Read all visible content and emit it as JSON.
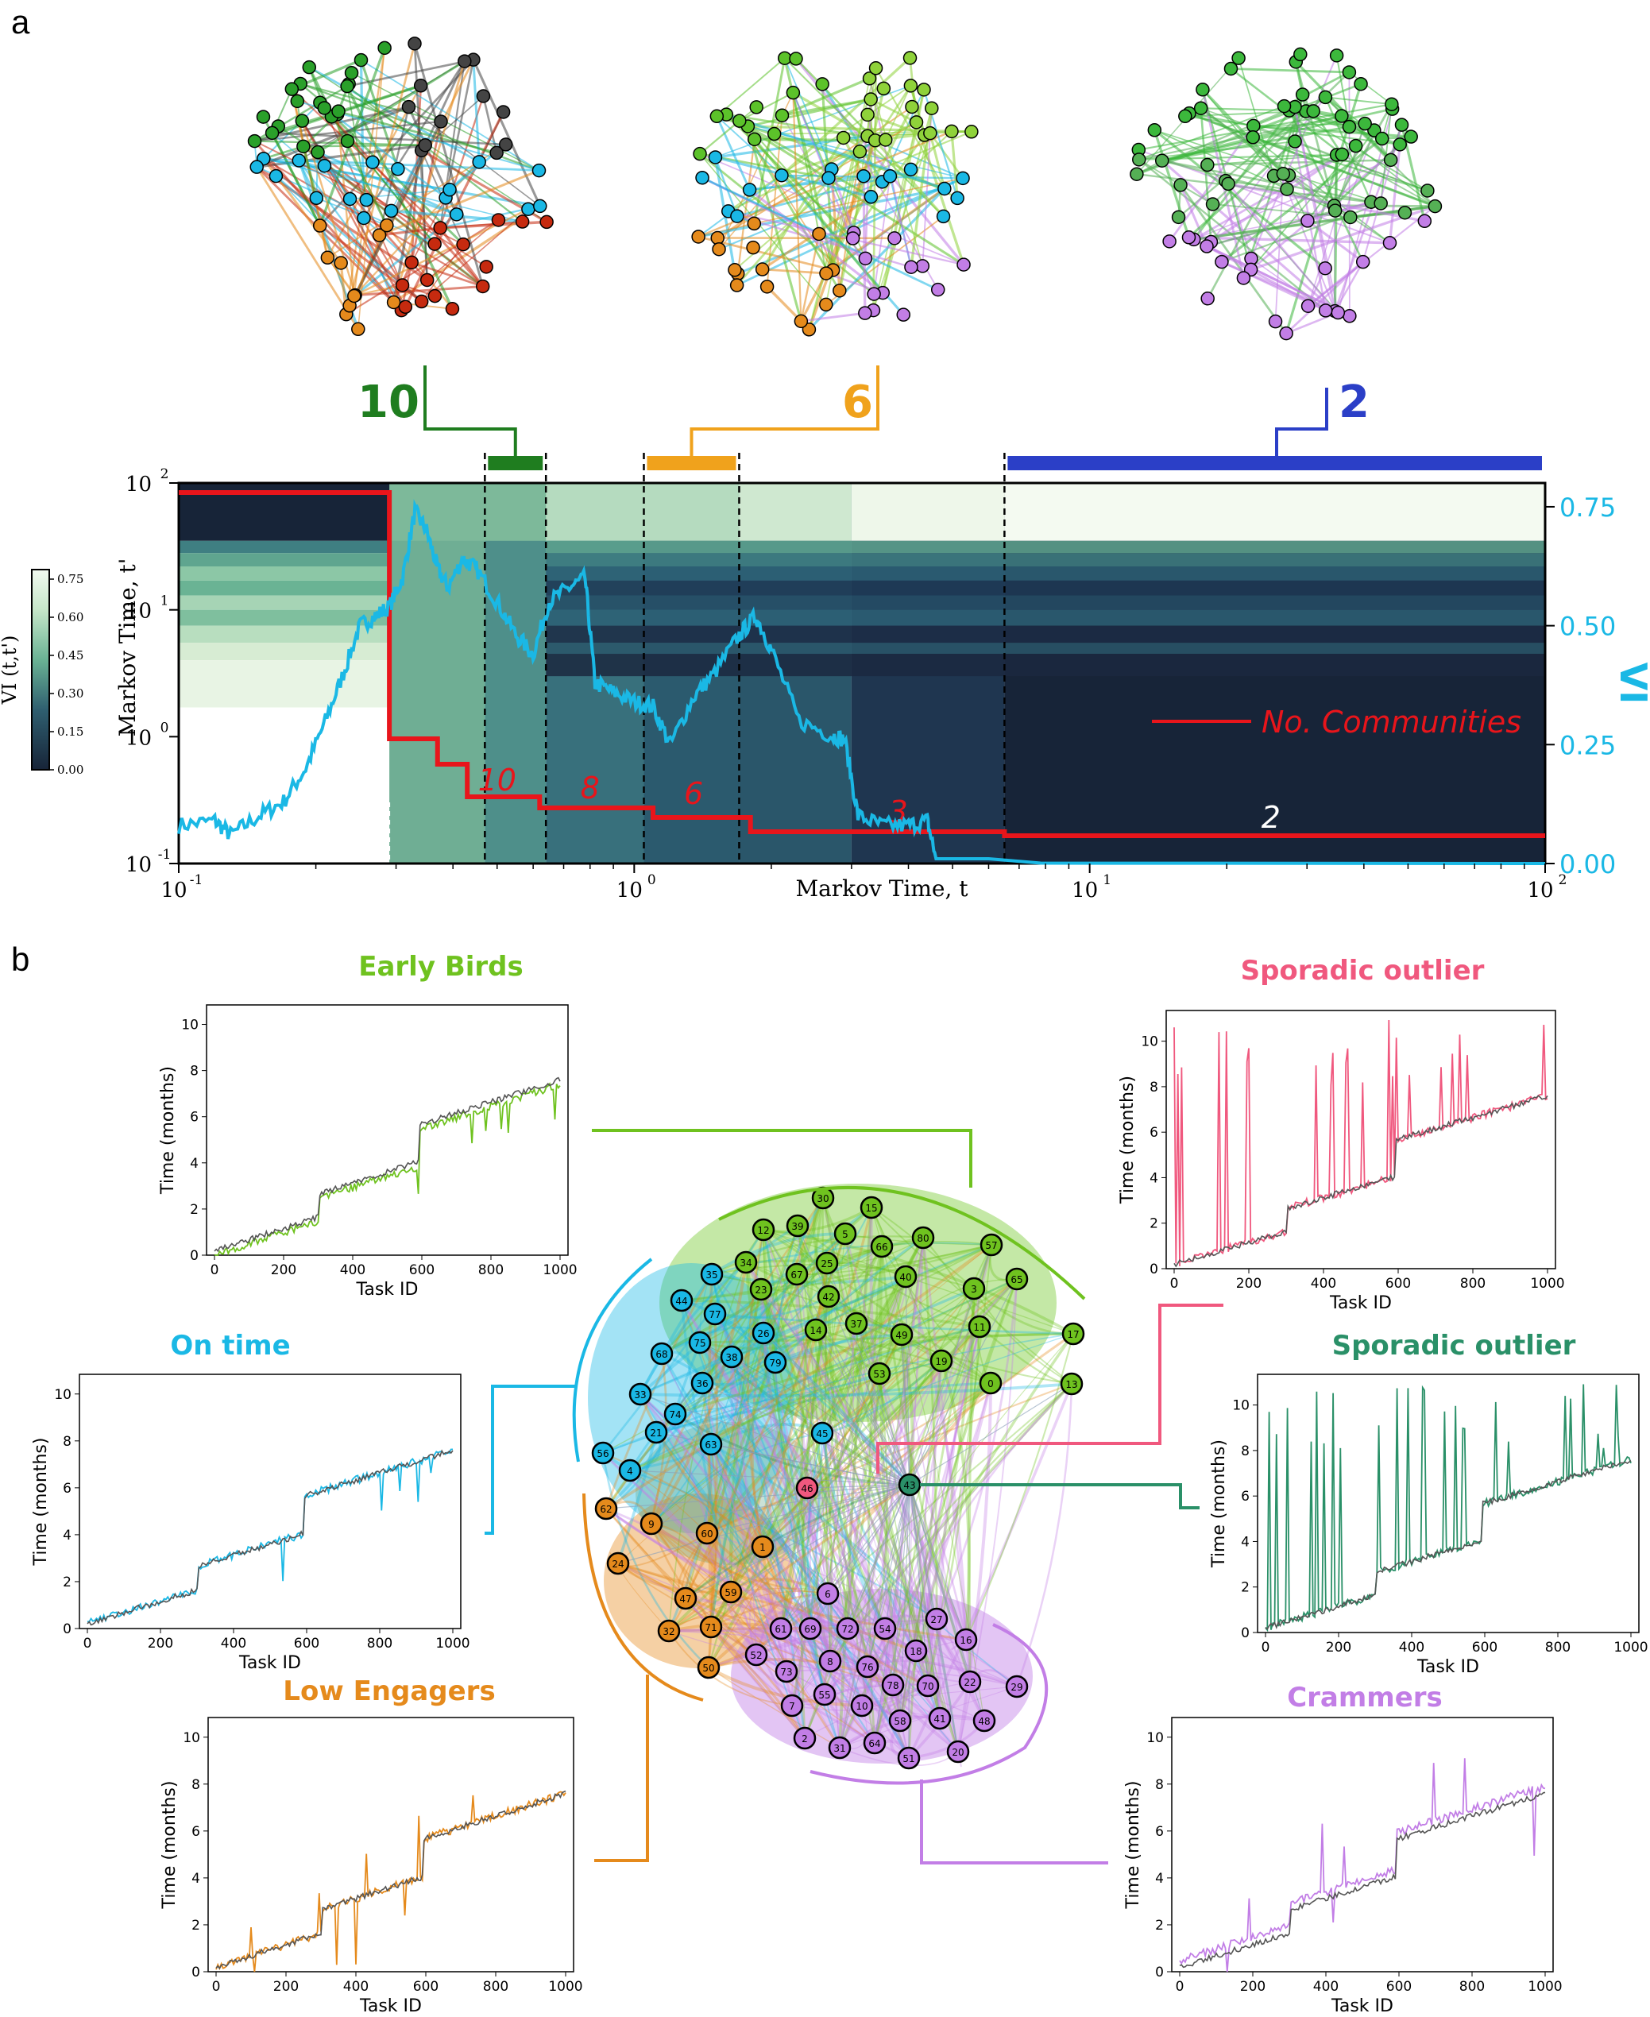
{
  "panel_labels": [
    "a",
    "b"
  ],
  "colors": {
    "green10": "#1f7d1f",
    "orange6": "#f0a21c",
    "blue2": "#2b3fc7",
    "red": "#e8151b",
    "cyan": "#1ab8e5",
    "early": "#6fc21f",
    "ontime": "#1ab8e5",
    "sporadic_pink": "#f0587e",
    "sporadic_green": "#2a9068",
    "low": "#e58a1c",
    "crammers": "#c27ee6"
  },
  "chart_data": [
    {
      "type": "heatmap",
      "xlabel": "Markov Time, t",
      "ylabel": "Markov Time, t'",
      "ylabel_right": "VI",
      "colorbar_label": "VI (t,t')",
      "x_scale": "log",
      "y_scale": "log",
      "xlim": [
        0.1,
        100
      ],
      "ylim": [
        0.1,
        100
      ],
      "ylim_right": [
        0.0,
        0.8
      ],
      "x_ticks": [
        "10",
        "10",
        "10",
        "10"
      ],
      "x_tick_exp": [
        "-1",
        "0",
        "1",
        "2"
      ],
      "y_ticks": [
        "10",
        "10",
        "10",
        "10"
      ],
      "y_tick_exp": [
        "-1",
        "0",
        "1",
        "2"
      ],
      "right_ticks": [
        "0.00",
        "0.25",
        "0.50",
        "0.75"
      ],
      "colorbar_ticks": [
        "0.75",
        "0.60",
        "0.45",
        "0.30",
        "0.15",
        "0.00"
      ],
      "legend": "No. Communities",
      "community_labels": [
        "10",
        "8",
        "6",
        "3",
        "2"
      ],
      "community_steps": [
        {
          "t": 0.1,
          "n": 100
        },
        {
          "t": 0.29,
          "n": 80
        },
        {
          "t": 0.3,
          "n": 15
        },
        {
          "t": 0.37,
          "n": 13
        },
        {
          "t": 0.43,
          "n": 10
        },
        {
          "t": 0.62,
          "n": 9
        },
        {
          "t": 1.1,
          "n": 8
        },
        {
          "t": 1.8,
          "n": 6
        },
        {
          "t": 6.5,
          "n": 3
        },
        {
          "t": 100,
          "n": 2
        }
      ],
      "vi_series": [
        {
          "t": 0.1,
          "vi": 0.08
        },
        {
          "t": 0.12,
          "vi": 0.09
        },
        {
          "t": 0.13,
          "vi": 0.06
        },
        {
          "t": 0.15,
          "vi": 0.1
        },
        {
          "t": 0.17,
          "vi": 0.13
        },
        {
          "t": 0.19,
          "vi": 0.2
        },
        {
          "t": 0.21,
          "vi": 0.3
        },
        {
          "t": 0.23,
          "vi": 0.4
        },
        {
          "t": 0.25,
          "vi": 0.5
        },
        {
          "t": 0.27,
          "vi": 0.52
        },
        {
          "t": 0.29,
          "vi": 0.54
        },
        {
          "t": 0.31,
          "vi": 0.6
        },
        {
          "t": 0.33,
          "vi": 0.74
        },
        {
          "t": 0.35,
          "vi": 0.7
        },
        {
          "t": 0.37,
          "vi": 0.62
        },
        {
          "t": 0.39,
          "vi": 0.58
        },
        {
          "t": 0.42,
          "vi": 0.64
        },
        {
          "t": 0.45,
          "vi": 0.62
        },
        {
          "t": 0.5,
          "vi": 0.55
        },
        {
          "t": 0.55,
          "vi": 0.48
        },
        {
          "t": 0.6,
          "vi": 0.44
        },
        {
          "t": 0.65,
          "vi": 0.55
        },
        {
          "t": 0.72,
          "vi": 0.58
        },
        {
          "t": 0.78,
          "vi": 0.6
        },
        {
          "t": 0.82,
          "vi": 0.38
        },
        {
          "t": 0.9,
          "vi": 0.36
        },
        {
          "t": 1.0,
          "vi": 0.34
        },
        {
          "t": 1.1,
          "vi": 0.33
        },
        {
          "t": 1.2,
          "vi": 0.25
        },
        {
          "t": 1.35,
          "vi": 0.35
        },
        {
          "t": 1.5,
          "vi": 0.4
        },
        {
          "t": 1.7,
          "vi": 0.48
        },
        {
          "t": 1.85,
          "vi": 0.52
        },
        {
          "t": 2.0,
          "vi": 0.45
        },
        {
          "t": 2.3,
          "vi": 0.3
        },
        {
          "t": 2.7,
          "vi": 0.27
        },
        {
          "t": 2.9,
          "vi": 0.26
        },
        {
          "t": 3.1,
          "vi": 0.1
        },
        {
          "t": 3.5,
          "vi": 0.08
        },
        {
          "t": 4.0,
          "vi": 0.08
        },
        {
          "t": 4.4,
          "vi": 0.09
        },
        {
          "t": 4.6,
          "vi": 0.01
        },
        {
          "t": 6.0,
          "vi": 0.01
        },
        {
          "t": 8.0,
          "vi": 0.0
        }
      ],
      "selected_ranges": [
        {
          "label": "10",
          "t_start": 0.47,
          "t_end": 0.64
        },
        {
          "label": "6",
          "t_start": 1.05,
          "t_end": 1.7
        },
        {
          "label": "2",
          "t_start": 6.5,
          "t_end": 100
        }
      ]
    },
    {
      "type": "line",
      "title": "Early Birds",
      "xlabel": "Task ID",
      "ylabel": "Time (months)",
      "xlim": [
        0,
        1000
      ],
      "ylim": [
        0,
        10.5
      ],
      "x_ticks": [
        "0",
        "200",
        "400",
        "600",
        "800",
        "1000"
      ],
      "y_ticks": [
        "0",
        "2",
        "4",
        "6",
        "8",
        "10"
      ]
    },
    {
      "type": "line",
      "title": "On time",
      "xlabel": "Task ID",
      "ylabel": "Time (months)",
      "xlim": [
        0,
        1000
      ],
      "ylim": [
        0,
        10.5
      ],
      "x_ticks": [
        "0",
        "200",
        "400",
        "600",
        "800",
        "1000"
      ],
      "y_ticks": [
        "0",
        "2",
        "4",
        "6",
        "8",
        "10"
      ]
    },
    {
      "type": "line",
      "title": "Low Engagers",
      "xlabel": "Task ID",
      "ylabel": "Time (months)",
      "xlim": [
        0,
        1000
      ],
      "ylim": [
        0,
        10.5
      ],
      "x_ticks": [
        "0",
        "200",
        "400",
        "600",
        "800",
        "1000"
      ],
      "y_ticks": [
        "0",
        "2",
        "4",
        "6",
        "8",
        "10"
      ]
    },
    {
      "type": "line",
      "title": "Sporadic outlier",
      "xlabel": "Task ID",
      "ylabel": "Time (months)",
      "xlim": [
        0,
        1000
      ],
      "ylim": [
        0,
        11
      ],
      "x_ticks": [
        "0",
        "200",
        "400",
        "600",
        "800",
        "1000"
      ],
      "y_ticks": [
        "0",
        "2",
        "4",
        "6",
        "8",
        "10"
      ]
    },
    {
      "type": "line",
      "title": "Sporadic outlier",
      "xlabel": "Task ID",
      "ylabel": "Time (months)",
      "xlim": [
        0,
        1000
      ],
      "ylim": [
        0,
        11
      ],
      "x_ticks": [
        "0",
        "200",
        "400",
        "600",
        "800",
        "1000"
      ],
      "y_ticks": [
        "0",
        "2",
        "4",
        "6",
        "8",
        "10"
      ]
    },
    {
      "type": "line",
      "title": "Crammers",
      "xlabel": "Task ID",
      "ylabel": "Time (months)",
      "xlim": [
        0,
        1000
      ],
      "ylim": [
        0,
        10.5
      ],
      "x_ticks": [
        "0",
        "200",
        "400",
        "600",
        "800",
        "1000"
      ],
      "y_ticks": [
        "0",
        "2",
        "4",
        "6",
        "8",
        "10"
      ]
    }
  ],
  "network_node_ids": [
    "30",
    "15",
    "39",
    "12",
    "5",
    "66",
    "80",
    "57",
    "34",
    "67",
    "25",
    "40",
    "65",
    "35",
    "23",
    "42",
    "3",
    "44",
    "14",
    "37",
    "11",
    "17",
    "77",
    "26",
    "49",
    "68",
    "75",
    "38",
    "79",
    "53",
    "19",
    "0",
    "13",
    "33",
    "36",
    "74",
    "21",
    "63",
    "45",
    "56",
    "4",
    "46",
    "43",
    "62",
    "9",
    "60",
    "1",
    "24",
    "47",
    "59",
    "6",
    "27",
    "61",
    "69",
    "72",
    "54",
    "16",
    "71",
    "18",
    "52",
    "73",
    "8",
    "76",
    "32",
    "50",
    "55",
    "78",
    "70",
    "22",
    "29",
    "7",
    "10",
    "58",
    "41",
    "48",
    "2",
    "31",
    "64",
    "51",
    "20"
  ]
}
